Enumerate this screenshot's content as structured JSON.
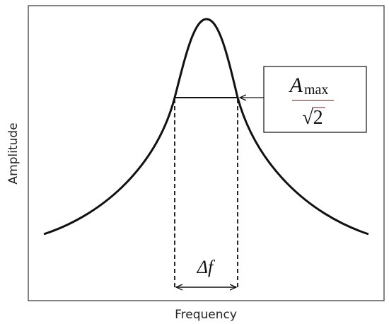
{
  "axes": {
    "x_label": "Frequency",
    "y_label": "Amplitude"
  },
  "annotations": {
    "bandwidth": "Δf",
    "amplitude_symbol": "A",
    "amplitude_subscript": "max",
    "divisor": "√2"
  }
}
